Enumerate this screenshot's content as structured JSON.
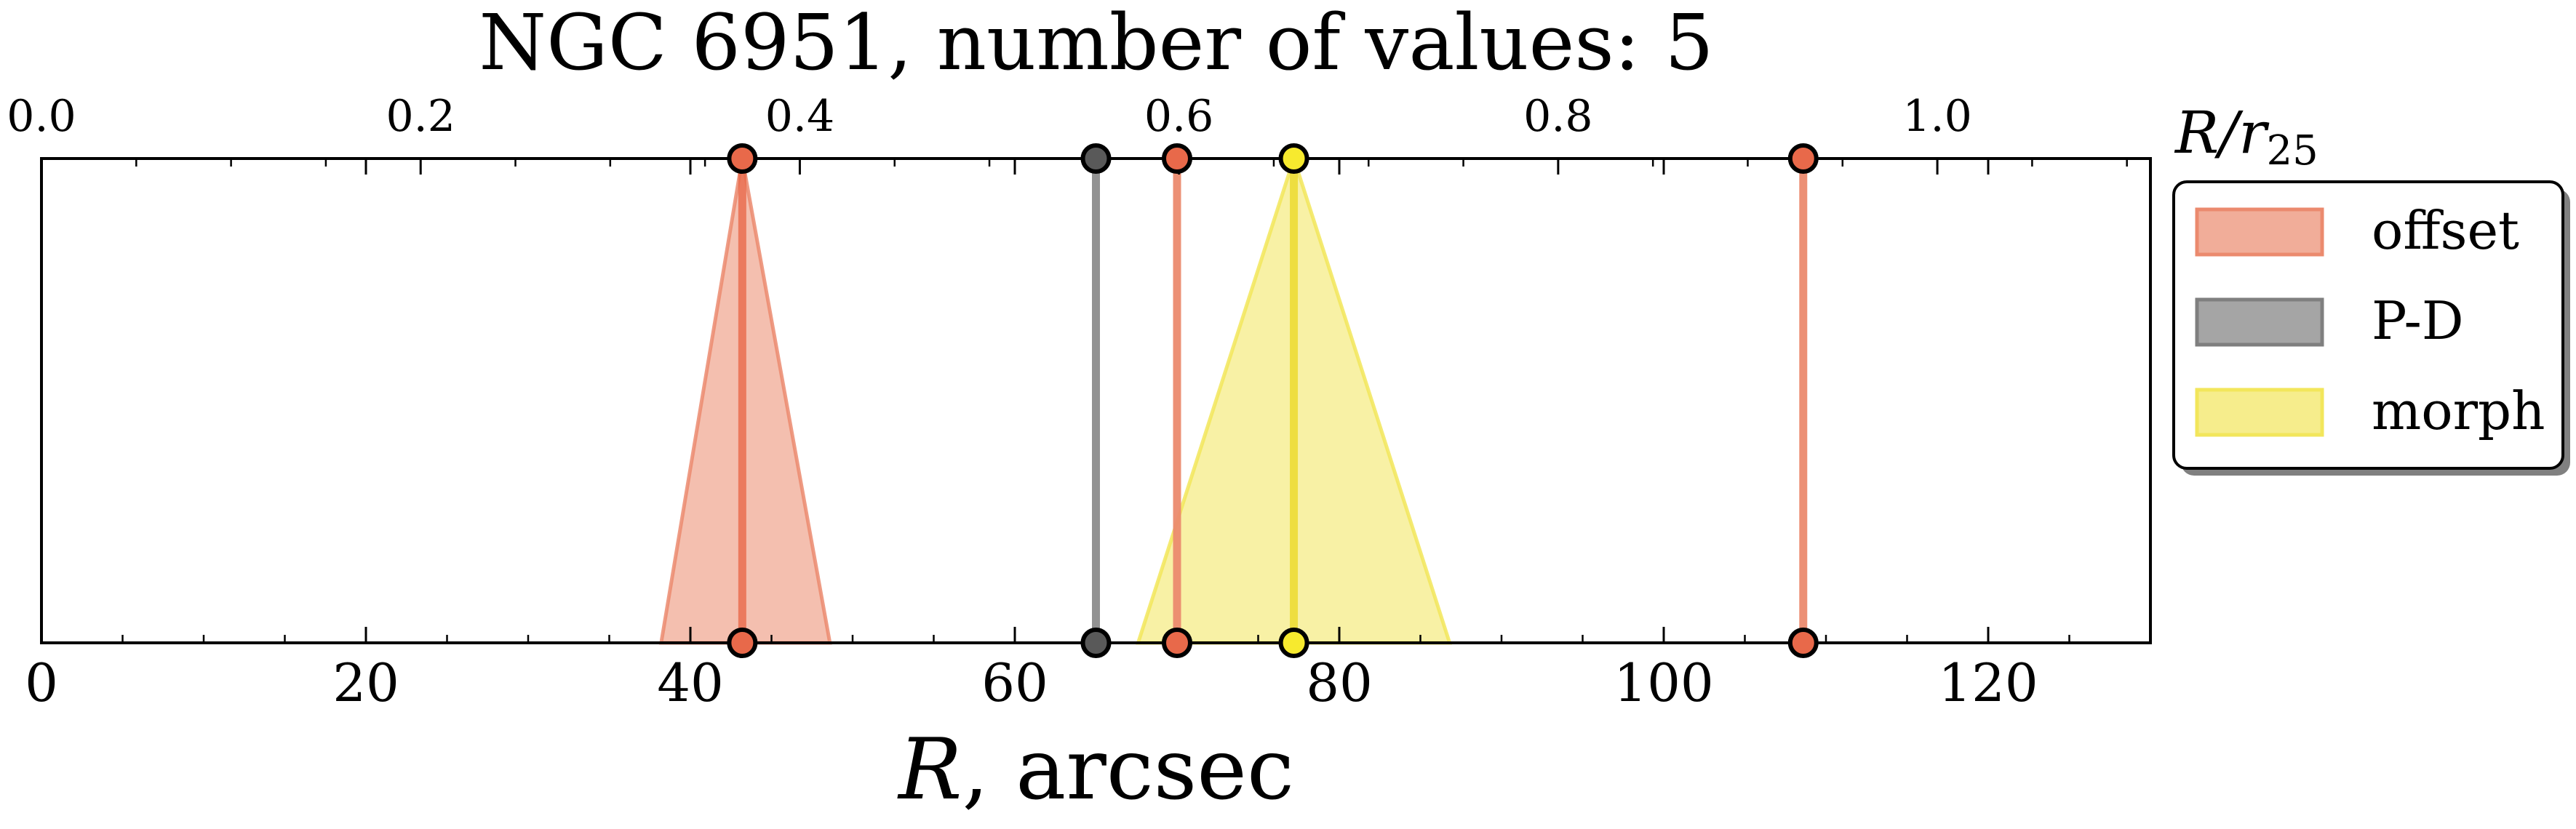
{
  "chart_data": {
    "type": "line",
    "title": "NGC 6951, number of values: 5",
    "xlabel_prefix": "R",
    "xlabel_suffix": ", arcsec",
    "xlim": [
      0,
      130
    ],
    "x_ticks": [
      0,
      20,
      40,
      60,
      80,
      100,
      120
    ],
    "x_tick_labels": [
      "0",
      "20",
      "40",
      "60",
      "80",
      "100",
      "120"
    ],
    "top_axis": {
      "label_base": "R/r",
      "label_sub": "25",
      "lim": [
        0,
        1.1124
      ],
      "ticks": [
        0.0,
        0.2,
        0.4,
        0.6,
        0.8,
        1.0
      ],
      "tick_labels": [
        "0.0",
        "0.2",
        "0.4",
        "0.6",
        "0.8",
        "1.0"
      ]
    },
    "legend": {
      "placement": "outside-right-top",
      "entries": [
        {
          "label": "offset",
          "color": "#EB8A6E"
        },
        {
          "label": "P-D",
          "color": "#7F7F7F"
        },
        {
          "label": "morph",
          "color": "#F2E65B"
        }
      ]
    },
    "series": [
      {
        "name": "offset",
        "value": 43.2,
        "err_low": 38.2,
        "err_high": 48.6
      },
      {
        "name": "P-D",
        "value": 65.0
      },
      {
        "name": "offset",
        "value": 70.0
      },
      {
        "name": "morph",
        "value": 77.2,
        "err_low": 67.6,
        "err_high": 86.8
      },
      {
        "name": "offset",
        "value": 108.6
      }
    ],
    "colors": {
      "offset_fill": "#EB8A6E",
      "offset_line": "#E8694A",
      "pd_line": "#7F7F7F",
      "pd_marker": "#595959",
      "morph_fill": "#F2E65B",
      "morph_line": "#EDDC3A",
      "morph_marker": "#F7EA2E"
    }
  }
}
